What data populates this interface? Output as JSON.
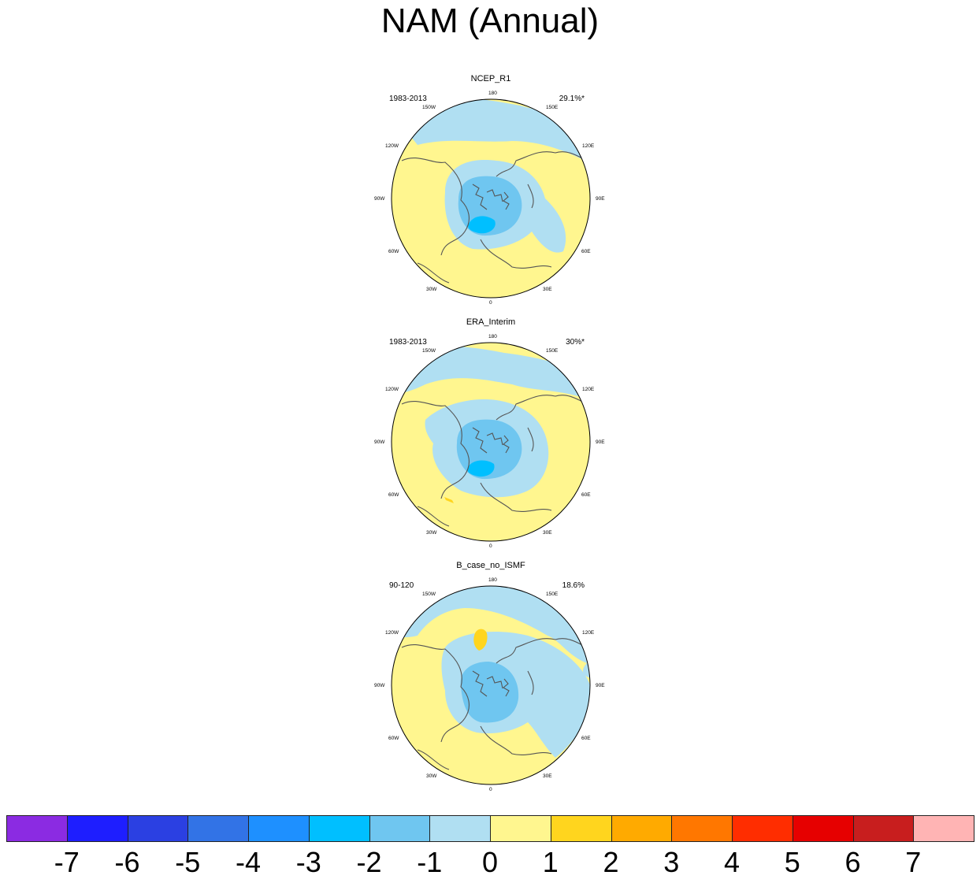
{
  "title": "NAM (Annual)",
  "panels": [
    {
      "title": "NCEP_R1",
      "period": "1983-2013",
      "variance": "29.1%*"
    },
    {
      "title": "ERA_Interim",
      "period": "1983-2013",
      "variance": "30%*"
    },
    {
      "title": "B_case_no_ISMF",
      "period": "90-120",
      "variance": "18.6%"
    }
  ],
  "lon_labels": {
    "l180": "180",
    "l150W": "150W",
    "l150E": "150E",
    "l120W": "120W",
    "l120E": "120E",
    "l90W": "90W",
    "l90E": "90E",
    "l60W": "60W",
    "l60E": "60E",
    "l30W": "30W",
    "l30E": "30E",
    "l0": "0"
  },
  "colorbar": {
    "labels": [
      "-7",
      "-6",
      "-5",
      "-4",
      "-3",
      "-2",
      "-1",
      "0",
      "1",
      "2",
      "3",
      "4",
      "5",
      "6",
      "7"
    ],
    "colors": [
      "#8b2be2",
      "#1e1eff",
      "#2b40e2",
      "#3273e6",
      "#1e90ff",
      "#00bfff",
      "#6fc6f0",
      "#b0dff2",
      "#fff68f",
      "#ffd51e",
      "#ffaa00",
      "#ff7700",
      "#ff2d00",
      "#e60000",
      "#c81e1e",
      "#ffb4b4"
    ]
  },
  "palette": {
    "yellow": "#fff68f",
    "light_blue": "#b0dff2",
    "mid_blue": "#6fc6f0",
    "blue": "#00bfff",
    "orange": "#ffd51e",
    "coast": "#555555"
  }
}
